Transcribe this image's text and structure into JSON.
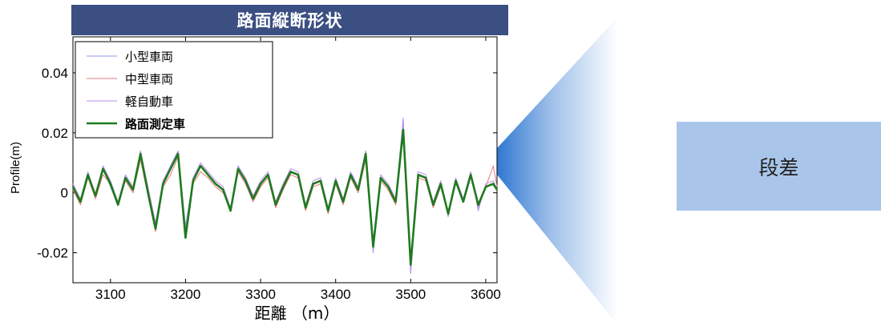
{
  "title": "路面縦断形状",
  "callout": {
    "label": "段差"
  },
  "chart_data": {
    "type": "line",
    "xlabel": "距離 （m）",
    "ylabel": "Profile(m)",
    "xlim": [
      3050,
      3615
    ],
    "ylim": [
      -0.03,
      0.052
    ],
    "xticks": [
      3100,
      3200,
      3300,
      3400,
      3500,
      3600
    ],
    "yticks": [
      -0.02,
      0,
      0.02,
      0.04
    ],
    "ytick_labels": [
      "-0.02",
      "0",
      "0.02",
      "0.04"
    ],
    "grid": false,
    "legend_position": "top-left",
    "x": [
      3050,
      3060,
      3070,
      3080,
      3090,
      3100,
      3110,
      3120,
      3130,
      3140,
      3150,
      3160,
      3170,
      3180,
      3190,
      3200,
      3210,
      3220,
      3230,
      3240,
      3250,
      3260,
      3270,
      3280,
      3290,
      3300,
      3310,
      3320,
      3330,
      3340,
      3350,
      3360,
      3370,
      3380,
      3390,
      3400,
      3410,
      3420,
      3430,
      3440,
      3450,
      3460,
      3470,
      3480,
      3490,
      3500,
      3510,
      3520,
      3530,
      3540,
      3550,
      3560,
      3570,
      3580,
      3590,
      3600,
      3610,
      3615
    ],
    "series": [
      {
        "name": "小型車両",
        "color": "#8f9be6",
        "values": [
          0.002,
          -0.003,
          0.006,
          -0.001,
          0.008,
          0.002,
          -0.004,
          0.005,
          0.001,
          0.013,
          0.001,
          -0.011,
          0.003,
          0.008,
          0.013,
          -0.011,
          0.004,
          0.009,
          0.006,
          0.003,
          0.001,
          -0.006,
          0.008,
          0.004,
          -0.002,
          0.003,
          0.006,
          -0.004,
          0.002,
          0.007,
          0.006,
          -0.005,
          0.003,
          0.004,
          -0.006,
          0.004,
          -0.003,
          0.006,
          0.001,
          0.013,
          -0.018,
          0.005,
          0.002,
          -0.003,
          0.024,
          -0.025,
          0.006,
          0.005,
          -0.004,
          0.003,
          -0.007,
          0.004,
          -0.003,
          0.006,
          -0.005,
          0.002,
          0.003,
          0.001
        ]
      },
      {
        "name": "中型車両",
        "color": "#e57b7b",
        "values": [
          0.001,
          -0.004,
          0.005,
          -0.002,
          0.006,
          0.003,
          -0.003,
          0.004,
          0.0,
          0.011,
          -0.001,
          -0.013,
          0.002,
          0.006,
          0.012,
          -0.013,
          0.003,
          0.007,
          0.005,
          0.002,
          0.0,
          -0.005,
          0.007,
          0.003,
          -0.003,
          0.002,
          0.005,
          -0.005,
          0.001,
          0.006,
          0.005,
          -0.006,
          0.002,
          0.003,
          -0.007,
          0.003,
          -0.004,
          0.005,
          0.0,
          0.011,
          -0.017,
          0.004,
          0.001,
          -0.004,
          0.02,
          -0.022,
          0.005,
          0.004,
          -0.005,
          0.002,
          -0.006,
          0.003,
          -0.002,
          0.007,
          -0.004,
          0.002,
          0.009,
          0.002
        ]
      },
      {
        "name": "軽自動車",
        "color": "#b98df0",
        "values": [
          0.003,
          -0.002,
          0.007,
          -0.001,
          0.009,
          0.004,
          -0.003,
          0.006,
          0.002,
          0.014,
          0.002,
          -0.01,
          0.004,
          0.009,
          0.014,
          -0.012,
          0.005,
          0.01,
          0.007,
          0.004,
          0.002,
          -0.005,
          0.009,
          0.005,
          -0.001,
          0.004,
          0.007,
          -0.003,
          0.003,
          0.008,
          0.007,
          -0.004,
          0.004,
          0.005,
          -0.005,
          0.005,
          -0.002,
          0.007,
          0.002,
          0.014,
          -0.02,
          0.006,
          0.003,
          -0.002,
          0.025,
          -0.027,
          0.007,
          0.006,
          -0.003,
          0.004,
          -0.008,
          0.005,
          -0.002,
          0.007,
          -0.006,
          0.003,
          0.004,
          0.001
        ]
      },
      {
        "name": "路面測定車",
        "color": "#1f7a1f",
        "bold": true,
        "values": [
          0.002,
          -0.003,
          0.006,
          -0.001,
          0.008,
          0.003,
          -0.004,
          0.005,
          0.001,
          0.013,
          0.0,
          -0.012,
          0.003,
          0.008,
          0.013,
          -0.015,
          0.004,
          0.009,
          0.006,
          0.003,
          0.001,
          -0.006,
          0.008,
          0.004,
          -0.002,
          0.003,
          0.006,
          -0.004,
          0.002,
          0.007,
          0.006,
          -0.005,
          0.003,
          0.004,
          -0.006,
          0.004,
          -0.003,
          0.006,
          0.001,
          0.013,
          -0.018,
          0.005,
          0.002,
          -0.003,
          0.021,
          -0.024,
          0.006,
          0.005,
          -0.004,
          0.003,
          -0.007,
          0.004,
          -0.003,
          0.006,
          -0.004,
          0.002,
          0.003,
          0.001
        ]
      }
    ]
  }
}
